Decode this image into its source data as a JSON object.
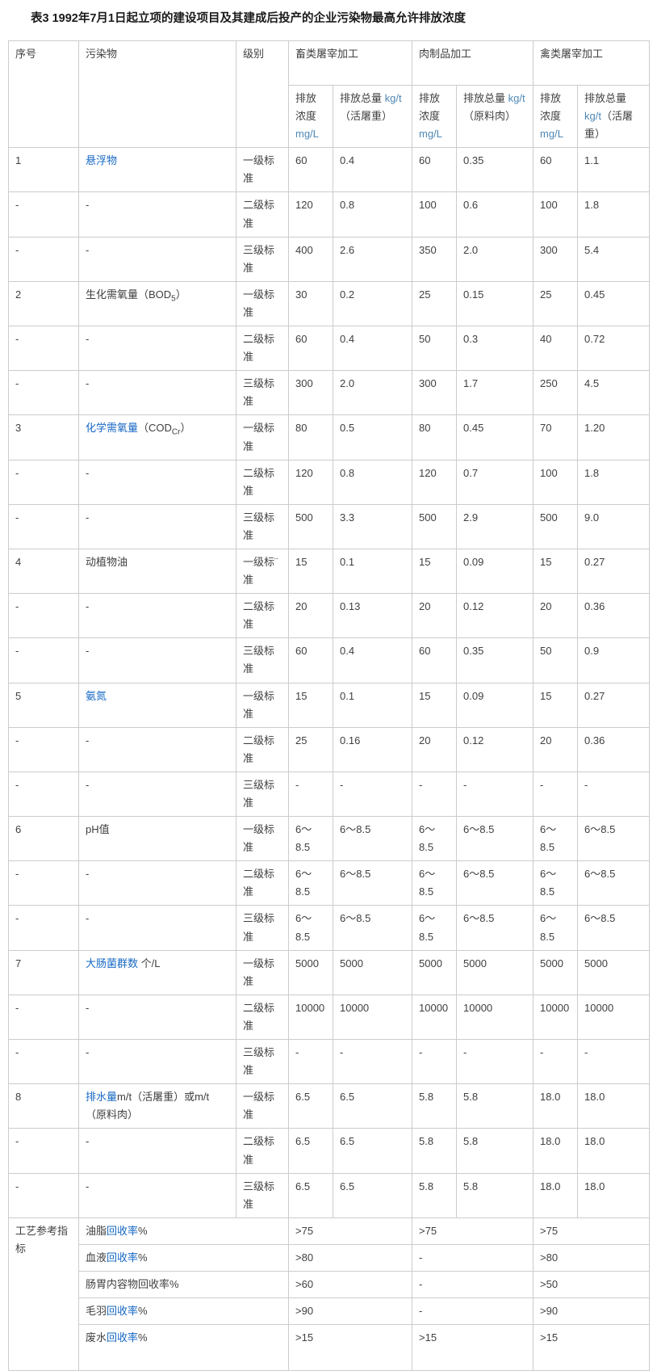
{
  "page": {
    "title": "表3 1992年7月1日起立项的建设项目及其建成后投产的企业污染物最高允许排放浓度"
  },
  "colors": {
    "link_blue": "#1668c4",
    "unit_blue": "#4e87b4",
    "text": "#404040",
    "border": "#cccccc"
  },
  "table": {
    "header": {
      "seq": "序号",
      "pollutant": "污染物",
      "level": "级别",
      "groups": [
        {
          "label": "畜类屠宰加工",
          "sub": [
            {
              "pre": "排放浓度 ",
              "unit": "mg/L",
              "post": ""
            },
            {
              "pre": "排放总量 ",
              "unit": "kg/t",
              "post": "（活屠重）"
            }
          ]
        },
        {
          "label": "肉制品加工",
          "sub": [
            {
              "pre": "排放浓度 ",
              "unit": "mg/L",
              "post": ""
            },
            {
              "pre": "排放总量 ",
              "unit": "kg/t",
              "post": "（原料肉）"
            }
          ]
        },
        {
          "label": "禽类屠宰加工",
          "sub": [
            {
              "pre": "排放浓度 ",
              "unit": "mg/L",
              "post": ""
            },
            {
              "pre": "排放总量 ",
              "unit": "kg/t",
              "post": "（活屠重）"
            }
          ]
        }
      ]
    },
    "rows": [
      {
        "seq": "1",
        "name": [
          {
            "t": "悬浮物",
            "s": "link"
          }
        ],
        "level": "一级标准",
        "values": [
          "60",
          "0.4",
          "60",
          "0.35",
          "60",
          "1.1"
        ]
      },
      {
        "seq": "-",
        "name": [
          {
            "t": "-",
            "s": "plain"
          }
        ],
        "level": "二级标准",
        "values": [
          "120",
          "0.8",
          "100",
          "0.6",
          "100",
          "1.8"
        ]
      },
      {
        "seq": "-",
        "name": [
          {
            "t": "-",
            "s": "plain"
          }
        ],
        "level": "三级标准",
        "values": [
          "400",
          "2.6",
          "350",
          "2.0",
          "300",
          "5.4"
        ]
      },
      {
        "seq": "2",
        "name": [
          {
            "t": "生化需氧量（BOD",
            "s": "plain"
          },
          {
            "t": "5",
            "s": "sub"
          },
          {
            "t": "）",
            "s": "plain"
          }
        ],
        "level": "一级标准",
        "values": [
          "30",
          "0.2",
          "25",
          "0.15",
          "25",
          "0.45"
        ]
      },
      {
        "seq": "-",
        "name": [
          {
            "t": "-",
            "s": "plain"
          }
        ],
        "level": "二级标准",
        "values": [
          "60",
          "0.4",
          "50",
          "0.3",
          "40",
          "0.72"
        ]
      },
      {
        "seq": "-",
        "name": [
          {
            "t": "-",
            "s": "plain"
          }
        ],
        "level": "三级标准",
        "values": [
          "300",
          "2.0",
          "300",
          "1.7",
          "250",
          "4.5"
        ]
      },
      {
        "seq": "3",
        "name": [
          {
            "t": "化学需氧量",
            "s": "link"
          },
          {
            "t": "（COD",
            "s": "plain"
          },
          {
            "t": "Cr",
            "s": "sub"
          },
          {
            "t": "）",
            "s": "plain"
          }
        ],
        "level": "一级标准",
        "values": [
          "80",
          "0.5",
          "80",
          "0.45",
          "70",
          "1.20"
        ]
      },
      {
        "seq": "-",
        "name": [
          {
            "t": "-",
            "s": "plain"
          }
        ],
        "level": "二级标准",
        "values": [
          "120",
          "0.8",
          "120",
          "0.7",
          "100",
          "1.8"
        ]
      },
      {
        "seq": "-",
        "name": [
          {
            "t": "-",
            "s": "plain"
          }
        ],
        "level": "三级标准",
        "values": [
          "500",
          "3.3",
          "500",
          "2.9",
          "500",
          "9.0"
        ]
      },
      {
        "seq": "4",
        "name": [
          {
            "t": "动植物油",
            "s": "plain"
          }
        ],
        "level": "一级标¨准",
        "values": [
          "15",
          "0.1",
          "15",
          "0.09",
          "15",
          "0.27"
        ]
      },
      {
        "seq": "-",
        "name": [
          {
            "t": "-",
            "s": "plain"
          }
        ],
        "level": "二级标准",
        "values": [
          "20",
          "0.13",
          "20",
          "0.12",
          "20",
          "0.36"
        ]
      },
      {
        "seq": "-",
        "name": [
          {
            "t": "-",
            "s": "plain"
          }
        ],
        "level": "三级标准",
        "values": [
          "60",
          "0.4",
          "60",
          "0.35",
          "50",
          "0.9"
        ]
      },
      {
        "seq": "5",
        "name": [
          {
            "t": "氨氮",
            "s": "link"
          }
        ],
        "level": "一级标准",
        "values": [
          "15",
          "0.1",
          "15",
          "0.09",
          "15",
          "0.27"
        ]
      },
      {
        "seq": "-",
        "name": [
          {
            "t": "-",
            "s": "plain"
          }
        ],
        "level": "二级标准",
        "values": [
          "25",
          "0.16",
          "20",
          "0.12",
          "20",
          "0.36"
        ]
      },
      {
        "seq": "-",
        "name": [
          {
            "t": "-",
            "s": "plain"
          }
        ],
        "level": "三级标准",
        "values": [
          "-",
          "-",
          "-",
          "-",
          "-",
          "-"
        ]
      },
      {
        "seq": "6",
        "name": [
          {
            "t": "pH值",
            "s": "plain"
          }
        ],
        "level": "一级标准",
        "values": [
          "6～8.5",
          "6～8.5",
          "6～8.5",
          "6～8.5",
          "6～8.5",
          "6～8.5"
        ]
      },
      {
        "seq": "-",
        "name": [
          {
            "t": "-",
            "s": "plain"
          }
        ],
        "level": "二级标准",
        "values": [
          "6～8.5",
          "6～8.5",
          "6～8.5",
          "6～8.5",
          "6～8.5",
          "6～8.5"
        ]
      },
      {
        "seq": "-",
        "name": [
          {
            "t": "-",
            "s": "plain"
          }
        ],
        "level": "三级标准",
        "values": [
          "6～8.5",
          "6～8.5",
          "6～8.5",
          "6～8.5",
          "6～8.5",
          "6～8.5"
        ]
      },
      {
        "seq": "7",
        "name": [
          {
            "t": "大肠菌群数",
            "s": "link"
          },
          {
            "t": " 个/L",
            "s": "plain"
          }
        ],
        "level": "一级标准",
        "values": [
          "5000",
          "5000",
          "5000",
          "5000",
          "5000",
          "5000"
        ]
      },
      {
        "seq": "-",
        "name": [
          {
            "t": "-",
            "s": "plain"
          }
        ],
        "level": "二级标准",
        "values": [
          "10000",
          "10000",
          "10000",
          "10000",
          "10000",
          "10000"
        ]
      },
      {
        "seq": "-",
        "name": [
          {
            "t": "-",
            "s": "plain"
          }
        ],
        "level": "三级标准",
        "values": [
          "-",
          "-",
          "-",
          "-",
          "-",
          "-"
        ]
      },
      {
        "seq": "8",
        "name": [
          {
            "t": "排水量",
            "s": "link"
          },
          {
            "t": "m/t（活屠重）或m/t（原料肉）",
            "s": "plain"
          }
        ],
        "level": "一级标准",
        "values": [
          "6.5",
          "6.5",
          "5.8",
          "5.8",
          "18.0",
          "18.0"
        ]
      },
      {
        "seq": "-",
        "name": [
          {
            "t": "-",
            "s": "plain"
          }
        ],
        "level": "二级标准",
        "values": [
          "6.5",
          "6.5",
          "5.8",
          "5.8",
          "18.0",
          "18.0"
        ]
      },
      {
        "seq": "-",
        "name": [
          {
            "t": "-",
            "s": "plain"
          }
        ],
        "level": "三级标准",
        "values": [
          "6.5",
          "6.5",
          "5.8",
          "5.8",
          "18.0",
          "18.0"
        ]
      }
    ],
    "footer": {
      "label": "工艺参考指标",
      "rows": [
        {
          "parts": [
            {
              "t": "油脂",
              "s": "plain"
            },
            {
              "t": "回收率",
              "s": "link"
            },
            {
              "t": "%",
              "s": "plain"
            }
          ],
          "values": [
            ">75",
            ">75",
            ">75"
          ]
        },
        {
          "parts": [
            {
              "t": "血液",
              "s": "plain"
            },
            {
              "t": "回收率",
              "s": "link"
            },
            {
              "t": "%",
              "s": "plain"
            }
          ],
          "values": [
            ">80",
            "-",
            ">80"
          ]
        },
        {
          "parts": [
            {
              "t": "肠胃内容物回收率%",
              "s": "plain"
            }
          ],
          "values": [
            ">60",
            "-",
            ">50"
          ]
        },
        {
          "parts": [
            {
              "t": "毛羽",
              "s": "plain"
            },
            {
              "t": "回收率",
              "s": "link"
            },
            {
              "t": "%",
              "s": "plain"
            }
          ],
          "values": [
            ">90",
            "-",
            ">90"
          ]
        },
        {
          "parts": [
            {
              "t": "废水",
              "s": "plain"
            },
            {
              "t": "回收率",
              "s": "link"
            },
            {
              "t": "%",
              "s": "plain"
            }
          ],
          "values": [
            ">15",
            ">15",
            ">15"
          ]
        }
      ]
    }
  }
}
